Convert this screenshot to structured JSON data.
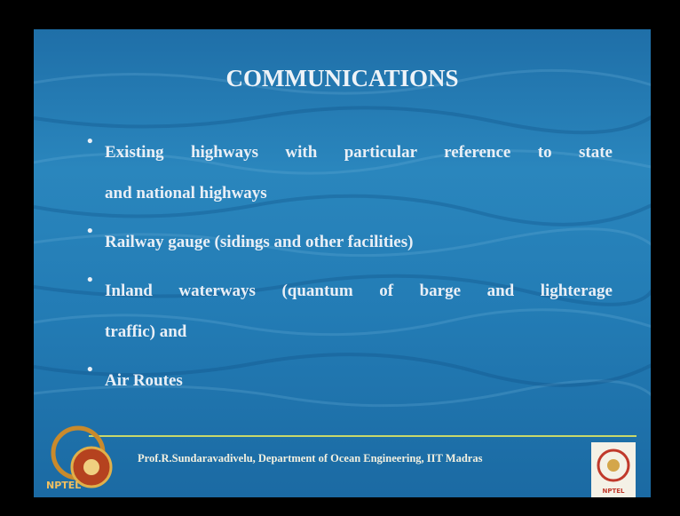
{
  "title": "COMMUNICATIONS",
  "bullets": [
    {
      "lines": [
        "Existing highways with particular reference to state",
        "and national highways"
      ]
    },
    {
      "lines": [
        "Railway gauge (sidings and other facilities)"
      ]
    },
    {
      "lines": [
        "Inland waterways (quantum of barge and lighterage",
        "traffic) and"
      ]
    },
    {
      "lines": [
        "Air Routes"
      ]
    }
  ],
  "footer": {
    "text": "Prof.R.Sundaravadivelu, Department of Ocean Engineering, IIT Madras",
    "left_logo_label": "NPTEL",
    "right_logo_label": "NPTEL"
  }
}
